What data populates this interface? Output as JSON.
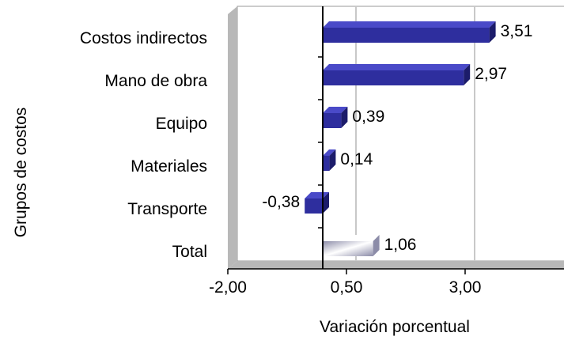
{
  "chart_data": {
    "type": "bar",
    "orientation": "horizontal",
    "style": "3d",
    "categories": [
      "Costos indirectos",
      "Mano de obra",
      "Equipo",
      "Materiales",
      "Transporte",
      "Total"
    ],
    "values": [
      3.51,
      2.97,
      0.39,
      0.14,
      -0.38,
      1.06
    ],
    "data_labels": [
      "3,51",
      "2,97",
      "0,39",
      "0,14",
      "-0,38",
      "1,06"
    ],
    "xlabel": "Variación porcentual",
    "ylabel": "Grupos de costos",
    "xlim": [
      -2.0,
      4.5
    ],
    "xticks": [
      -2.0,
      0.5,
      3.0
    ],
    "xtick_labels": [
      "-2,00",
      "0,50",
      "3,00"
    ],
    "grid": true,
    "legend": "none",
    "colors": {
      "bar_front": "#2e2e9e",
      "bar_top": "#4a4ac8",
      "bar_side": "#1c1c6a",
      "total_dark": "#8c8ca8",
      "total_light": "#ffffff",
      "grid": "#c8c8c8",
      "wall_shadow": "#b8b8b8"
    }
  }
}
